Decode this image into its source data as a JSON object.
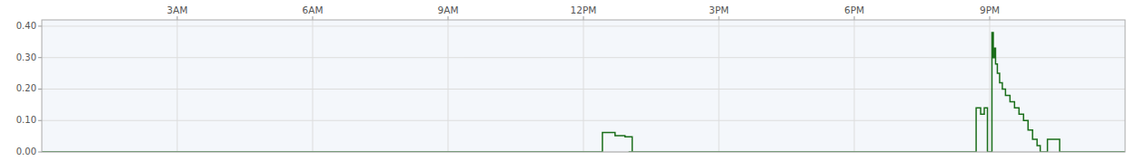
{
  "chart_data": {
    "type": "line",
    "x": [
      0.0,
      12.42,
      12.42,
      12.7,
      12.7,
      12.92,
      12.92,
      13.08,
      13.08,
      13.0,
      20.7,
      20.7,
      20.8,
      20.8,
      20.88,
      20.88,
      20.95,
      20.95,
      21.05,
      21.05,
      21.08,
      21.08,
      21.1,
      21.1,
      21.13,
      21.13,
      21.17,
      21.17,
      21.22,
      21.22,
      21.28,
      21.28,
      21.35,
      21.35,
      21.45,
      21.45,
      21.55,
      21.55,
      21.65,
      21.65,
      21.75,
      21.75,
      21.85,
      21.85,
      21.95,
      21.95,
      22.05,
      22.05,
      22.12,
      22.12,
      22.28,
      22.28,
      22.55,
      22.55,
      24.0
    ],
    "values": [
      0.0,
      0.0,
      0.062,
      0.062,
      0.052,
      0.052,
      0.048,
      0.048,
      0.0,
      0.0,
      0.0,
      0.14,
      0.14,
      0.12,
      0.12,
      0.14,
      0.14,
      0.0,
      0.0,
      0.38,
      0.38,
      0.3,
      0.3,
      0.33,
      0.33,
      0.28,
      0.28,
      0.25,
      0.25,
      0.22,
      0.22,
      0.2,
      0.2,
      0.18,
      0.18,
      0.16,
      0.16,
      0.14,
      0.14,
      0.12,
      0.12,
      0.1,
      0.1,
      0.07,
      0.07,
      0.04,
      0.04,
      0.02,
      0.02,
      0.0,
      0.0,
      0.04,
      0.04,
      0.0,
      0.0
    ],
    "color": "#1a6e1a",
    "xlim": [
      0,
      24
    ],
    "ylim": [
      0.0,
      0.42
    ],
    "xticks": [
      {
        "value": 3,
        "label": "3AM"
      },
      {
        "value": 6,
        "label": "6AM"
      },
      {
        "value": 9,
        "label": "9AM"
      },
      {
        "value": 12,
        "label": "12PM"
      },
      {
        "value": 15,
        "label": "3PM"
      },
      {
        "value": 18,
        "label": "6PM"
      },
      {
        "value": 21,
        "label": "9PM"
      }
    ],
    "yticks": [
      {
        "value": 0.0,
        "label": "0.00"
      },
      {
        "value": 0.1,
        "label": "0.10"
      },
      {
        "value": 0.2,
        "label": "0.20"
      },
      {
        "value": 0.3,
        "label": "0.30"
      },
      {
        "value": 0.4,
        "label": "0.40"
      }
    ],
    "grid": true
  }
}
